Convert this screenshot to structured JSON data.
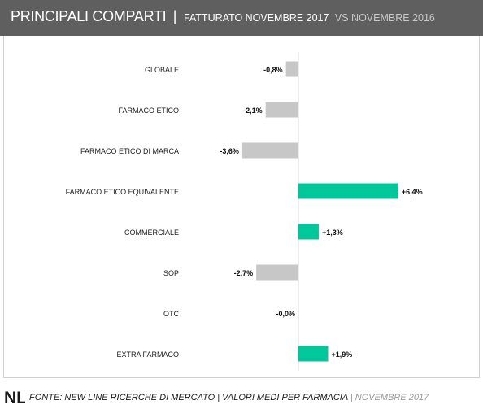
{
  "header": {
    "title_main": "PRINCIPALI COMPARTI",
    "separator": "|",
    "title_sub": "FATTURATO NOVEMBRE 2017",
    "title_sub_compare": "VS NOVEMBRE  2016"
  },
  "colors": {
    "negative": "#c7c7c7",
    "positive": "#00c89a",
    "header_bg": "#5f5f5f"
  },
  "chart_data": {
    "type": "bar",
    "orientation": "horizontal",
    "categories": [
      "GLOBALE",
      "FARMACO ETICO",
      "FARMACO ETICO DI MARCA",
      "FARMACO ETICO EQUIVALENTE",
      "COMMERCIALE",
      "SOP",
      "OTC",
      "EXTRA FARMACO"
    ],
    "values": [
      -0.8,
      -2.1,
      -3.6,
      6.4,
      1.3,
      -2.7,
      -0.0,
      1.9
    ],
    "labels": [
      "-0,8%",
      "-2,1%",
      "-3,6%",
      "+6,4%",
      "+1,3%",
      "-2,7%",
      "-0,0%",
      "+1,9%"
    ],
    "unit": "%",
    "xlim": [
      -8,
      7
    ],
    "grid": false
  },
  "footer": {
    "logo_text": "NL",
    "source": "FONTE:  NEW LINE RICERCHE DI MERCATO | VALORI MEDI PER FARMACIA",
    "date": " | NOVEMBRE 2017"
  }
}
